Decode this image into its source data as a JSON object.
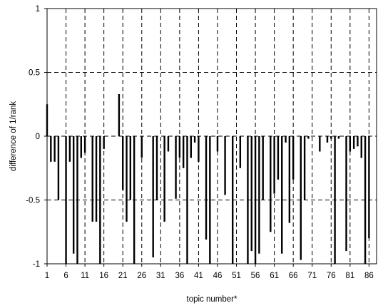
{
  "chart_data": {
    "type": "bar",
    "xlabel": "topic number*",
    "ylabel": "difference of 1/rank",
    "ylim": [
      -1,
      1
    ],
    "xlim": [
      1,
      88
    ],
    "yticks": [
      1,
      0.5,
      0,
      -0.5,
      -1
    ],
    "ytick_labels": [
      "1",
      "0.5",
      "0",
      "-0.5",
      "-1"
    ],
    "xticks": [
      1,
      6,
      11,
      16,
      21,
      26,
      31,
      36,
      41,
      46,
      51,
      56,
      61,
      66,
      71,
      76,
      81,
      86
    ],
    "xtick_labels": [
      "1",
      "6",
      "11",
      "16",
      "21",
      "26",
      "31",
      "36",
      "41",
      "46",
      "51",
      "56",
      "61",
      "66",
      "71",
      "76",
      "81",
      "86"
    ],
    "grid": true,
    "legend": false,
    "bar_color": "#000000",
    "x": [
      1,
      2,
      3,
      4,
      5,
      6,
      7,
      8,
      9,
      10,
      11,
      12,
      13,
      14,
      15,
      16,
      17,
      18,
      19,
      20,
      21,
      22,
      23,
      24,
      25,
      26,
      27,
      28,
      29,
      30,
      31,
      32,
      33,
      34,
      35,
      36,
      37,
      38,
      39,
      40,
      41,
      42,
      43,
      44,
      45,
      46,
      47,
      48,
      49,
      50,
      51,
      52,
      53,
      54,
      55,
      56,
      57,
      58,
      59,
      60,
      61,
      62,
      63,
      64,
      65,
      66,
      67,
      68,
      69,
      70,
      71,
      72,
      73,
      74,
      75,
      76,
      77,
      78,
      79,
      80,
      81,
      82,
      83,
      84,
      85,
      86,
      87
    ],
    "values": [
      0.25,
      -0.2,
      -0.2,
      -0.5,
      0,
      -1,
      -0.2,
      -0.92,
      -1,
      -0.17,
      -0.13,
      0,
      -0.67,
      -0.67,
      -1,
      -0.1,
      0,
      0,
      0,
      0.33,
      -0.42,
      -0.67,
      -0.5,
      -1,
      0,
      -0.17,
      0,
      0,
      -0.95,
      -0.5,
      0,
      -0.67,
      -0.12,
      0,
      -0.49,
      -0.17,
      -0.25,
      -1,
      -0.17,
      -0.05,
      -0.2,
      0,
      -0.81,
      -1,
      0,
      -0.12,
      0,
      -0.46,
      0,
      -1,
      0,
      -0.25,
      0,
      -1,
      -0.9,
      -1,
      -0.92,
      -0.5,
      0,
      -0.75,
      -0.45,
      -0.34,
      -0.92,
      -0.05,
      -0.68,
      -0.34,
      0,
      -0.97,
      -0.5,
      -0.02,
      0,
      0,
      -0.12,
      0,
      -0.05,
      -0.02,
      -1,
      -0.02,
      0,
      -0.9,
      -0.12,
      -0.1,
      -0.08,
      -0.17,
      -1,
      -0.8,
      0
    ]
  }
}
